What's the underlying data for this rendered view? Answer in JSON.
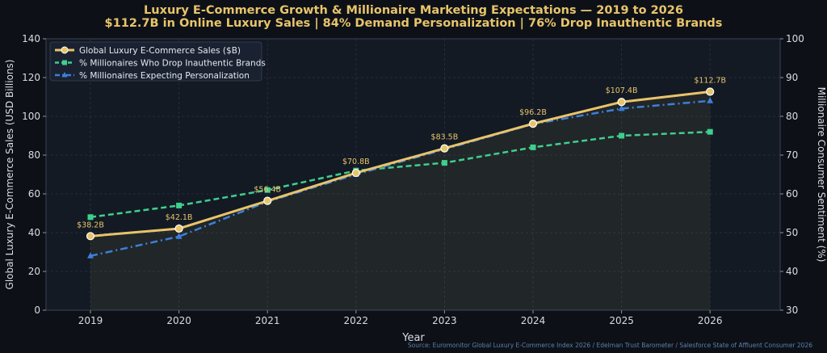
{
  "chart_data": {
    "type": "line",
    "title": "Luxury E-Commerce Growth & Millionaire Marketing Expectations — 2019 to 2026",
    "subtitle": "$112.7B in Online Luxury Sales | 84% Demand Personalization | 76% Drop Inauthentic Brands",
    "xlabel": "Year",
    "ylabel_left": "Global Luxury E-Commerce Sales (USD Billions)",
    "ylabel_right": "Millionaire Consumer Sentiment (%)",
    "x": [
      "2019",
      "2020",
      "2021",
      "2022",
      "2023",
      "2024",
      "2025",
      "2026"
    ],
    "ylim_left": [
      0,
      140
    ],
    "yticks_left": [
      "0",
      "20",
      "40",
      "60",
      "80",
      "100",
      "120",
      "140"
    ],
    "ylim_right": [
      30,
      100
    ],
    "yticks_right": [
      "30",
      "40",
      "50",
      "60",
      "70",
      "80",
      "90",
      "100"
    ],
    "grid": true,
    "legend_position": "top-left",
    "series": [
      {
        "name": "Global Luxury E-Commerce Sales ($B)",
        "axis": "left",
        "color": "#e8c46a",
        "style": "solid",
        "marker": "circle",
        "values": [
          38.2,
          42.1,
          56.4,
          70.8,
          83.5,
          96.2,
          107.4,
          112.7
        ],
        "labels": [
          "$38.2B",
          "$42.1B",
          "$56.4B",
          "$70.8B",
          "$83.5B",
          "$96.2B",
          "$107.4B",
          "$112.7B"
        ]
      },
      {
        "name": "% Millionaires Who Drop Inauthentic Brands",
        "axis": "right",
        "color": "#3ecf8e",
        "style": "dashed",
        "marker": "square",
        "values": [
          54,
          57,
          61,
          66,
          68,
          72,
          75,
          76
        ]
      },
      {
        "name": "% Millionaires Expecting Personalization",
        "axis": "right",
        "color": "#3d7fd9",
        "style": "dashdot",
        "marker": "triangle",
        "values": [
          44,
          49,
          58,
          65,
          71.5,
          78,
          82,
          84
        ]
      }
    ],
    "source": "Source: Euromonitor Global Luxury E-Commerce Index 2026 / Edelman Trust Barometer / Salesforce State of Affluent Consumer 2026"
  }
}
